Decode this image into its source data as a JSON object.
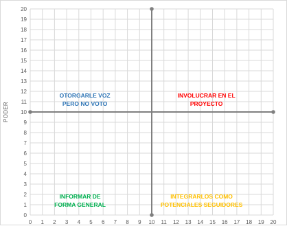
{
  "chart_data": {
    "type": "scatter",
    "title": "",
    "xlabel": "",
    "ylabel": "PODER",
    "xlim": [
      0,
      20
    ],
    "ylim": [
      0,
      20
    ],
    "x_ticks": [
      "0",
      "1",
      "2",
      "3",
      "4",
      "5",
      "6",
      "7",
      "8",
      "9",
      "10",
      "11",
      "12",
      "13",
      "14",
      "15",
      "16",
      "17",
      "18",
      "19",
      "20"
    ],
    "y_ticks": [
      "0",
      "1",
      "2",
      "3",
      "4",
      "5",
      "6",
      "7",
      "8",
      "9",
      "10",
      "11",
      "12",
      "13",
      "14",
      "15",
      "16",
      "17",
      "18",
      "19",
      "20"
    ],
    "grid": true,
    "series": [
      {
        "color": "#7f7f7f",
        "points": [
          {
            "x": 0,
            "y": 10
          },
          {
            "x": 20,
            "y": 10
          }
        ]
      },
      {
        "color": "#7f7f7f",
        "points": [
          {
            "x": 10,
            "y": 0
          },
          {
            "x": 10,
            "y": 20
          }
        ]
      }
    ],
    "annotations": [
      {
        "id": "otorgar",
        "lines": [
          "OTORGARLE VOZ",
          "PERO NO VOTO"
        ],
        "x": 4.5,
        "y": 11.0,
        "color": "#2e75b6"
      },
      {
        "id": "involucrar",
        "lines": [
          "INVOLUCRAR EN EL",
          "PROYECTO"
        ],
        "x": 14.5,
        "y": 11.0,
        "color": "#ff0000"
      },
      {
        "id": "informar",
        "lines": [
          "INFORMAR DE",
          "FORMA GENERAL"
        ],
        "x": 4.1,
        "y": 1.2,
        "color": "#00b050"
      },
      {
        "id": "integrarlos",
        "lines": [
          "INTEGRARLOS COMO",
          "POTENCIALES SEGUIDORES"
        ],
        "x": 14.1,
        "y": 1.2,
        "color": "#ffc000"
      }
    ]
  }
}
